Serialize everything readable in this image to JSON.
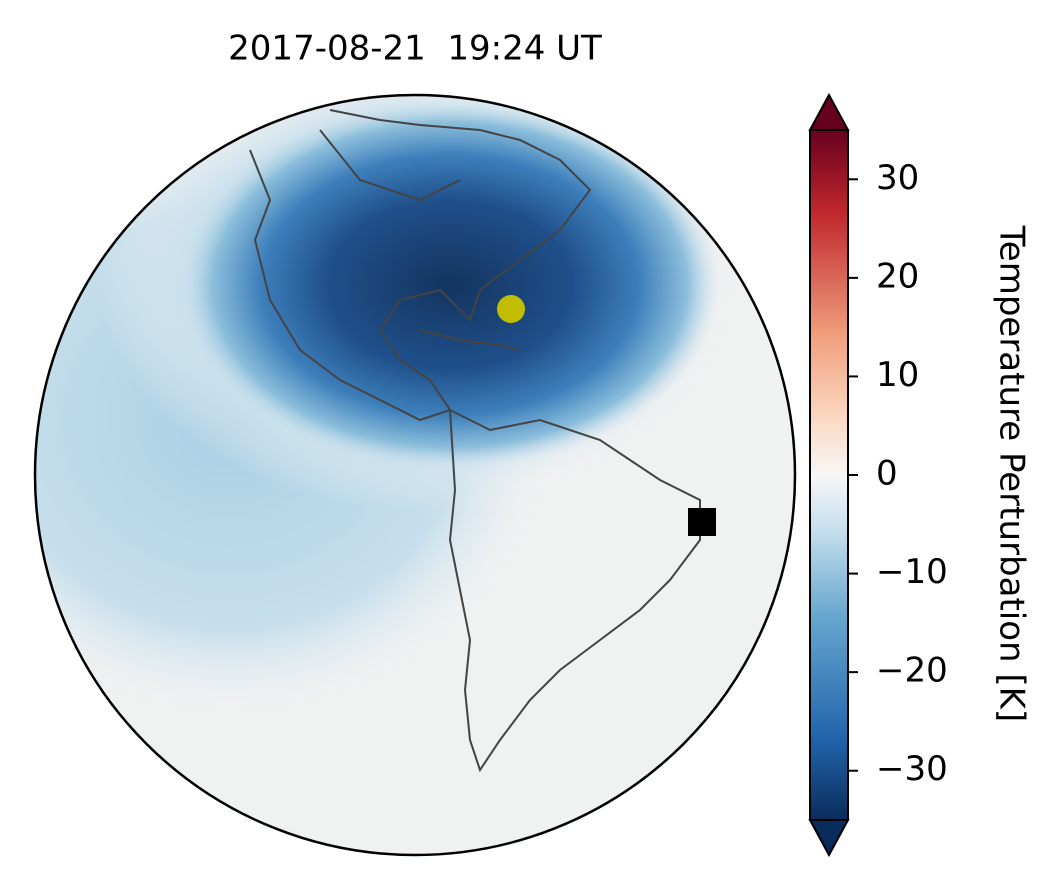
{
  "chart_data": {
    "type": "map",
    "title": "2017-08-21  19:24 UT",
    "colorbar": {
      "label": "Temperature Perturbation [K]",
      "lim": [
        -35,
        35
      ],
      "ticks": [
        {
          "value": -30,
          "label": "−30"
        },
        {
          "value": -20,
          "label": "−20"
        },
        {
          "value": -10,
          "label": "−10"
        },
        0,
        10,
        20,
        30
      ]
    }
  }
}
